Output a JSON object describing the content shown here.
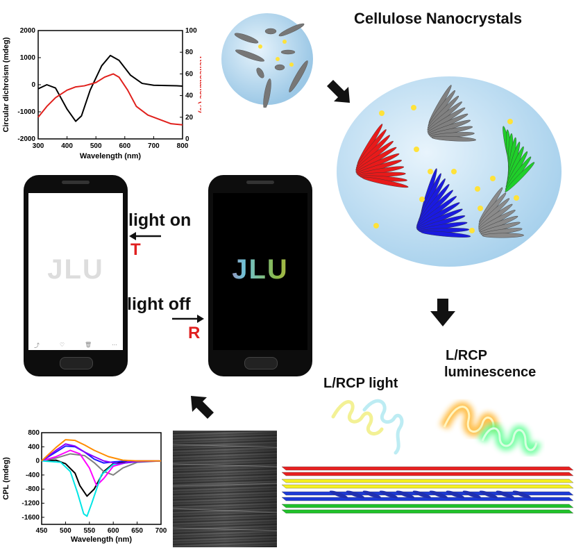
{
  "title": "Cellulose Nanocrystals",
  "phone_labels": {
    "on": "light on",
    "on_mode": "T",
    "off": "light off",
    "off_mode": "R"
  },
  "phone": {
    "logo": "JLU"
  },
  "lcp": {
    "light": "L/RCP light",
    "lum_line1": "L/RCP",
    "lum_line2": "luminescence"
  },
  "colors": {
    "cd": "#000000",
    "refl": "#e0201c",
    "cpl": [
      "#000000",
      "#808080",
      "#ff00ff",
      "#1a1aff",
      "#00e5e5",
      "#8b00ff",
      "#ff8c00"
    ]
  },
  "chart_data": [
    {
      "type": "line",
      "xlabel": "Wavelength (nm)",
      "ylabel": "Circular dichroism (mdeg)",
      "y2label": "Reflectance (%)",
      "xlim": [
        300,
        800
      ],
      "ylim": [
        -2000,
        2000
      ],
      "y2lim": [
        0,
        100
      ],
      "xticks": [
        300,
        400,
        500,
        600,
        700,
        800
      ],
      "yticks": [
        -2000,
        -1000,
        0,
        1000,
        2000
      ],
      "y2ticks": [
        0,
        20,
        40,
        60,
        80,
        100
      ],
      "series": [
        {
          "axis": "left",
          "x": [
            300,
            330,
            360,
            400,
            430,
            450,
            480,
            520,
            550,
            580,
            620,
            660,
            700,
            740,
            780,
            800
          ],
          "values": [
            -150,
            0,
            -120,
            -900,
            -1350,
            -1150,
            -200,
            700,
            1080,
            900,
            350,
            50,
            -20,
            -30,
            -40,
            -50
          ]
        },
        {
          "axis": "right",
          "x": [
            300,
            330,
            360,
            400,
            430,
            460,
            500,
            530,
            560,
            580,
            610,
            640,
            680,
            720,
            760,
            800
          ],
          "values": [
            20,
            30,
            38,
            45,
            48,
            49,
            52,
            57,
            60,
            57,
            45,
            30,
            22,
            18,
            14,
            13
          ]
        }
      ]
    },
    {
      "type": "line",
      "xlabel": "Wavelength (nm)",
      "ylabel": "CPL (mdeg)",
      "xlim": [
        450,
        700
      ],
      "ylim": [
        -1800,
        800
      ],
      "xticks": [
        450,
        500,
        550,
        600,
        650,
        700
      ],
      "yticks": [
        800,
        400,
        0,
        -400,
        -800,
        -1200,
        -1600
      ],
      "series": [
        {
          "x": [
            450,
            480,
            500,
            520,
            530,
            545,
            560,
            580,
            600,
            640,
            700
          ],
          "values": [
            0,
            20,
            -80,
            -350,
            -700,
            -1000,
            -800,
            -300,
            -80,
            0,
            0
          ]
        },
        {
          "x": [
            450,
            480,
            510,
            540,
            560,
            580,
            600,
            620,
            650,
            700
          ],
          "values": [
            0,
            80,
            200,
            150,
            -50,
            -300,
            -400,
            -200,
            -40,
            0
          ]
        },
        {
          "x": [
            450,
            480,
            510,
            530,
            550,
            565,
            580,
            600,
            640,
            700
          ],
          "values": [
            0,
            120,
            300,
            200,
            -200,
            -700,
            -500,
            -150,
            0,
            0
          ]
        },
        {
          "x": [
            450,
            480,
            500,
            520,
            540,
            560,
            580,
            600,
            630,
            700
          ],
          "values": [
            0,
            250,
            420,
            400,
            250,
            50,
            -60,
            -30,
            0,
            0
          ]
        },
        {
          "x": [
            450,
            490,
            510,
            525,
            538,
            545,
            555,
            575,
            600,
            650,
            700
          ],
          "values": [
            0,
            -40,
            -300,
            -900,
            -1500,
            -1570,
            -1200,
            -400,
            -100,
            -20,
            0
          ]
        },
        {
          "x": [
            450,
            480,
            500,
            520,
            540,
            560,
            580,
            610,
            650,
            700
          ],
          "values": [
            0,
            300,
            480,
            420,
            250,
            120,
            0,
            -80,
            -20,
            0
          ]
        },
        {
          "x": [
            450,
            480,
            500,
            520,
            540,
            560,
            590,
            620,
            650,
            700
          ],
          "values": [
            0,
            380,
            600,
            580,
            450,
            300,
            120,
            20,
            0,
            0
          ]
        }
      ]
    }
  ]
}
